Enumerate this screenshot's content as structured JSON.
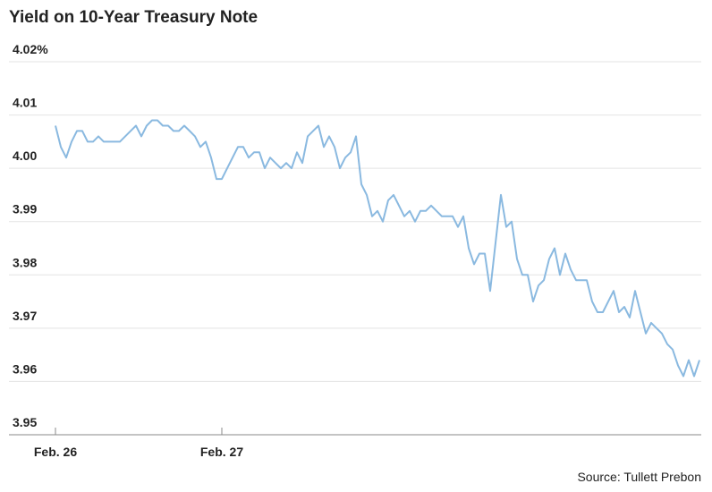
{
  "chart_data": {
    "type": "line",
    "title": "Yield on 10-Year Treasury Note",
    "source": "Source: Tullett Prebon",
    "categories": [
      "Feb. 26",
      null,
      null,
      null,
      null,
      null,
      null,
      null,
      null,
      null,
      null,
      null,
      null,
      null,
      null,
      null,
      null,
      null,
      null,
      null,
      null,
      null,
      null,
      null,
      null,
      null,
      null,
      null,
      null,
      null,
      null,
      "Feb. 27",
      null,
      null,
      null,
      null,
      null,
      null,
      null,
      null,
      null,
      null,
      null,
      null,
      null,
      null,
      null,
      null,
      null,
      null,
      null,
      null,
      null,
      null,
      null,
      null,
      null,
      null,
      null,
      null,
      null,
      null,
      null,
      null,
      null,
      null,
      null,
      null,
      null,
      null,
      null,
      null,
      null,
      null,
      null,
      null,
      null,
      null,
      null,
      null,
      null,
      null,
      null,
      null,
      null,
      null,
      null,
      null,
      null,
      null,
      null,
      null,
      null,
      null,
      null,
      null,
      null,
      null,
      null,
      null,
      null,
      null,
      null,
      null,
      null,
      null,
      null,
      null,
      null,
      null,
      null,
      null,
      null,
      null,
      null,
      null,
      null,
      null,
      null,
      null,
      null
    ],
    "series": [
      {
        "color": "#8ab9e0",
        "values": [
          4.008,
          4.004,
          4.002,
          4.005,
          4.007,
          4.007,
          4.005,
          4.005,
          4.006,
          4.005,
          4.005,
          4.005,
          4.005,
          4.006,
          4.007,
          4.008,
          4.006,
          4.008,
          4.009,
          4.009,
          4.008,
          4.008,
          4.007,
          4.007,
          4.008,
          4.007,
          4.006,
          4.004,
          4.005,
          4.002,
          3.998,
          3.998,
          4.0,
          4.002,
          4.004,
          4.004,
          4.002,
          4.003,
          4.003,
          4.0,
          4.002,
          4.001,
          4.0,
          4.001,
          4.0,
          4.003,
          4.001,
          4.006,
          4.007,
          4.008,
          4.004,
          4.006,
          4.004,
          4.0,
          4.002,
          4.003,
          4.006,
          3.997,
          3.995,
          3.991,
          3.992,
          3.99,
          3.994,
          3.995,
          3.993,
          3.991,
          3.992,
          3.99,
          3.992,
          3.992,
          3.993,
          3.992,
          3.991,
          3.991,
          3.991,
          3.989,
          3.991,
          3.985,
          3.982,
          3.984,
          3.984,
          3.977,
          3.986,
          3.995,
          3.989,
          3.99,
          3.983,
          3.98,
          3.98,
          3.975,
          3.978,
          3.979,
          3.983,
          3.985,
          3.98,
          3.984,
          3.981,
          3.979,
          3.979,
          3.979,
          3.975,
          3.973,
          3.973,
          3.975,
          3.977,
          3.973,
          3.974,
          3.972,
          3.977,
          3.973,
          3.969,
          3.971,
          3.97,
          3.969,
          3.967,
          3.966,
          3.963,
          3.961,
          3.964,
          3.961,
          3.964
        ]
      }
    ],
    "ylim": [
      3.95,
      4.02
    ],
    "yticks": [
      3.95,
      3.96,
      3.97,
      3.98,
      3.99,
      {
        "value": 4,
        "label": "4.00"
      },
      4.01,
      {
        "value": 4.02,
        "label": "4.02%"
      }
    ],
    "grid": true
  }
}
